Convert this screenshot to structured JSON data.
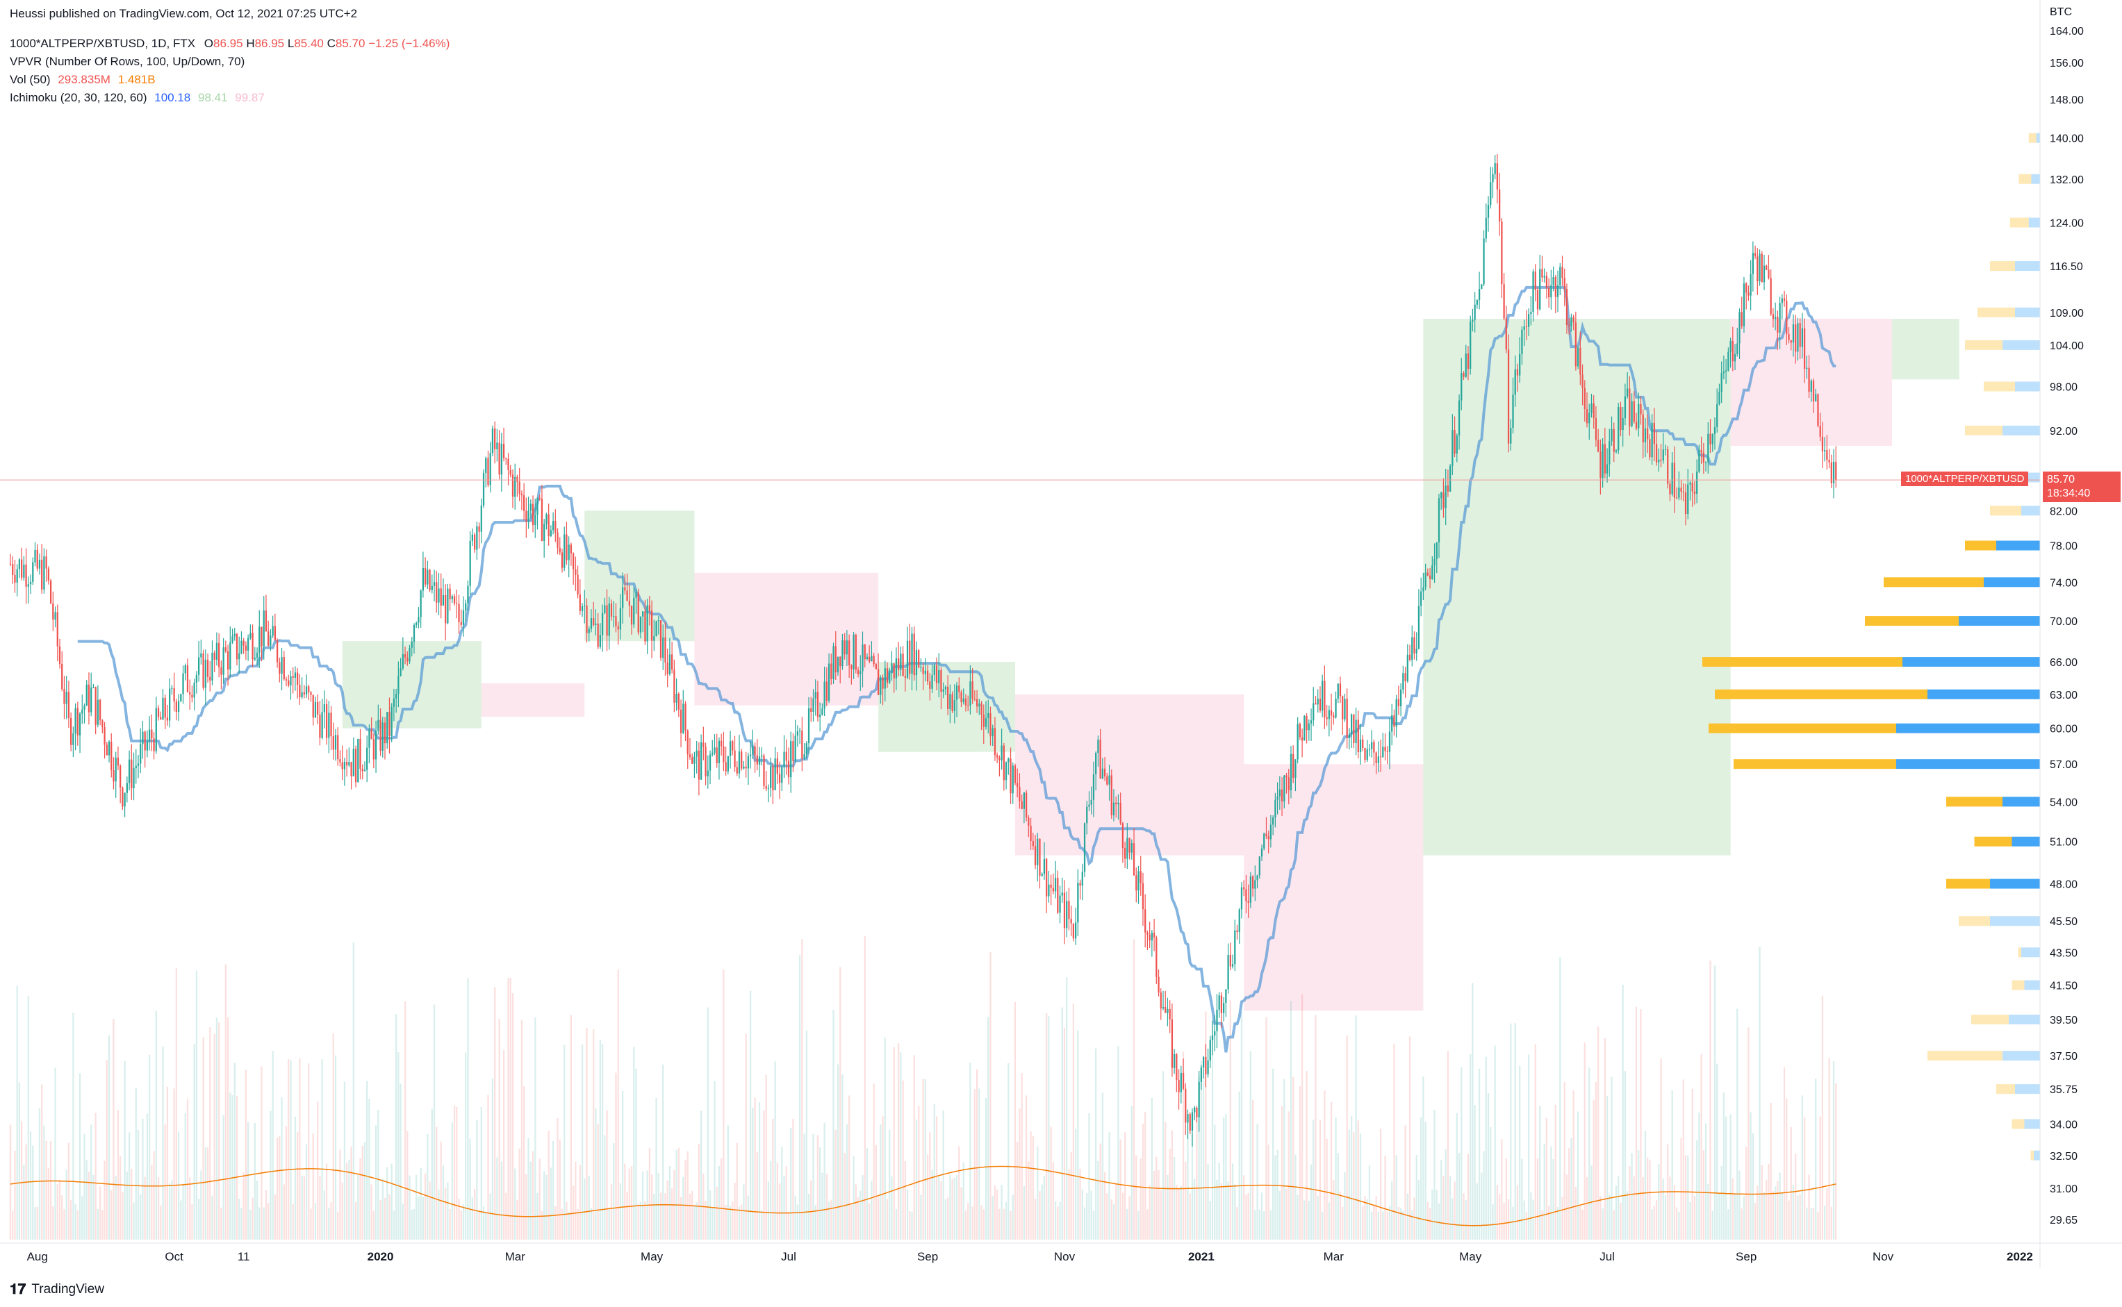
{
  "attribution": "Heussi published on TradingView.com, Oct 12, 2021 07:25 UTC+2",
  "legend": {
    "symbol_line": "1000*ALTPERP/XBTUSD, 1D, FTX",
    "ohlc": {
      "o_label": "O",
      "o": "86.95",
      "h_label": "H",
      "h": "86.95",
      "l_label": "L",
      "l": "85.40",
      "c_label": "C",
      "c": "85.70",
      "change": "−1.25 (−1.46%)"
    },
    "vpvr": "VPVR (Number Of Rows, 100, Up/Down, 70)",
    "vol_label": "Vol (50)",
    "vol_value": "293.835M",
    "vol_ma": "1.481B",
    "ichimoku_label": "Ichimoku (20, 30, 120, 60)",
    "ichimoku_v1": "100.18",
    "ichimoku_v2": "98.41",
    "ichimoku_v3": "99.87"
  },
  "price_tag": {
    "symbol": "1000*ALTPERP/XBTUSD",
    "price": "85.70",
    "countdown": "18:34:40"
  },
  "currency": "BTC",
  "footer_logo": "TradingView",
  "colors": {
    "up": "#26a69a",
    "down": "#ef5350",
    "baseline": "#5b9bd5",
    "vol_ma": "#f57c00",
    "cloud_green": "#a5d6a7",
    "cloud_red": "#f8bbd0",
    "vp_up": "#42a5f5",
    "vp_down": "#fbc02d"
  },
  "chart_data": {
    "type": "candlestick",
    "title": "1000*ALTPERP/XBTUSD, 1D, FTX",
    "y_axis": {
      "ticks": [
        "164.00",
        "156.00",
        "148.00",
        "140.00",
        "132.00",
        "124.00",
        "116.50",
        "109.00",
        "104.00",
        "98.00",
        "92.00",
        "82.00",
        "78.00",
        "74.00",
        "70.00",
        "66.00",
        "63.00",
        "60.00",
        "57.00",
        "54.00",
        "51.00",
        "48.00",
        "45.50",
        "43.50",
        "41.50",
        "39.50",
        "37.50",
        "35.75",
        "34.00",
        "32.50",
        "31.00",
        "29.65"
      ],
      "scale": "log",
      "range": [
        28.8,
        164
      ]
    },
    "x_axis": {
      "ticks": [
        "Aug",
        "Oct",
        "11",
        "2020",
        "Mar",
        "May",
        "Jul",
        "Sep",
        "Nov",
        "2021",
        "Mar",
        "May",
        "Jul",
        "Sep",
        "Nov",
        "2022"
      ],
      "range": [
        "2019-07-20",
        "2022-01-10"
      ]
    },
    "last_price": 85.7,
    "price_path_approx": [
      {
        "date": "2019-07-20",
        "close": 76
      },
      {
        "date": "2019-08-05",
        "close": 75
      },
      {
        "date": "2019-08-15",
        "close": 60
      },
      {
        "date": "2019-08-25",
        "close": 63
      },
      {
        "date": "2019-09-08",
        "close": 55
      },
      {
        "date": "2019-09-20",
        "close": 59
      },
      {
        "date": "2019-10-05",
        "close": 64
      },
      {
        "date": "2019-10-20",
        "close": 66
      },
      {
        "date": "2019-11-10",
        "close": 69
      },
      {
        "date": "2019-12-01",
        "close": 62
      },
      {
        "date": "2019-12-20",
        "close": 57
      },
      {
        "date": "2020-01-05",
        "close": 60
      },
      {
        "date": "2020-01-20",
        "close": 74
      },
      {
        "date": "2020-02-05",
        "close": 70
      },
      {
        "date": "2020-02-20",
        "close": 90
      },
      {
        "date": "2020-03-05",
        "close": 83
      },
      {
        "date": "2020-03-20",
        "close": 79
      },
      {
        "date": "2020-04-05",
        "close": 69
      },
      {
        "date": "2020-04-20",
        "close": 72
      },
      {
        "date": "2020-05-05",
        "close": 68
      },
      {
        "date": "2020-05-20",
        "close": 57
      },
      {
        "date": "2020-06-10",
        "close": 58
      },
      {
        "date": "2020-06-25",
        "close": 56
      },
      {
        "date": "2020-07-10",
        "close": 60
      },
      {
        "date": "2020-07-25",
        "close": 68
      },
      {
        "date": "2020-08-10",
        "close": 64
      },
      {
        "date": "2020-08-25",
        "close": 67
      },
      {
        "date": "2020-09-10",
        "close": 63
      },
      {
        "date": "2020-09-25",
        "close": 62
      },
      {
        "date": "2020-10-10",
        "close": 55
      },
      {
        "date": "2020-10-25",
        "close": 48
      },
      {
        "date": "2020-11-05",
        "close": 45
      },
      {
        "date": "2020-11-15",
        "close": 58
      },
      {
        "date": "2020-11-25",
        "close": 53
      },
      {
        "date": "2020-12-10",
        "close": 44
      },
      {
        "date": "2020-12-20",
        "close": 37
      },
      {
        "date": "2020-12-28",
        "close": 34
      },
      {
        "date": "2021-01-05",
        "close": 38
      },
      {
        "date": "2021-01-20",
        "close": 47
      },
      {
        "date": "2021-02-05",
        "close": 54
      },
      {
        "date": "2021-02-20",
        "close": 63
      },
      {
        "date": "2021-03-05",
        "close": 62
      },
      {
        "date": "2021-03-15",
        "close": 57
      },
      {
        "date": "2021-03-28",
        "close": 60
      },
      {
        "date": "2021-04-10",
        "close": 72
      },
      {
        "date": "2021-04-22",
        "close": 88
      },
      {
        "date": "2021-05-05",
        "close": 112
      },
      {
        "date": "2021-05-12",
        "close": 138
      },
      {
        "date": "2021-05-18",
        "close": 93
      },
      {
        "date": "2021-05-28",
        "close": 112
      },
      {
        "date": "2021-06-10",
        "close": 115
      },
      {
        "date": "2021-06-20",
        "close": 98
      },
      {
        "date": "2021-06-28",
        "close": 88
      },
      {
        "date": "2021-07-10",
        "close": 95
      },
      {
        "date": "2021-07-25",
        "close": 89
      },
      {
        "date": "2021-08-05",
        "close": 82
      },
      {
        "date": "2021-08-18",
        "close": 94
      },
      {
        "date": "2021-08-30",
        "close": 109
      },
      {
        "date": "2021-09-05",
        "close": 118
      },
      {
        "date": "2021-09-15",
        "close": 109
      },
      {
        "date": "2021-09-25",
        "close": 105
      },
      {
        "date": "2021-10-05",
        "close": 92
      },
      {
        "date": "2021-10-11",
        "close": 85.7
      }
    ]
  }
}
